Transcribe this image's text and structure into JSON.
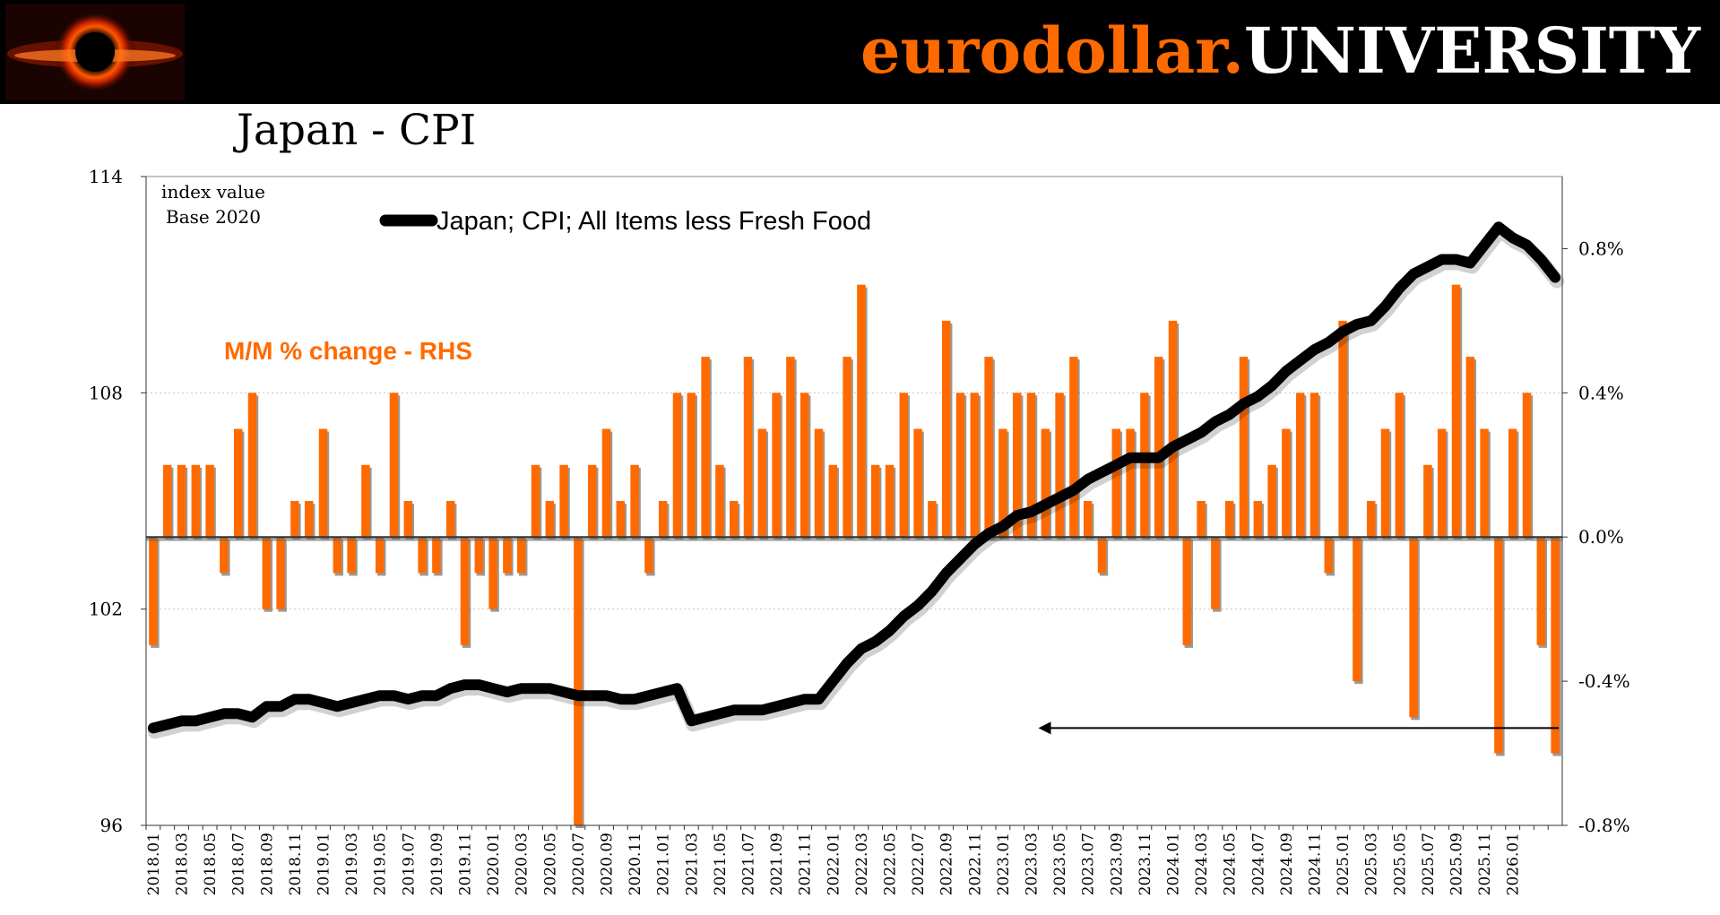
{
  "header": {
    "brand_left": "eurodollar.",
    "brand_right": "UNIVERSITY",
    "logo_icon": "black-hole-icon"
  },
  "colors": {
    "line": "#000000",
    "bars": "#ff6a00",
    "brand_accent": "#ff6a00",
    "header_bg": "#000000"
  },
  "chart_data": {
    "type": "bar+line",
    "title": "Japan - CPI",
    "left_axis": {
      "label_line1": "index value",
      "label_line2": "Base 2020",
      "range": [
        96,
        114
      ],
      "ticks": [
        96,
        102,
        108,
        114
      ],
      "tick_labels": [
        "96",
        "102",
        "108",
        "114"
      ]
    },
    "right_axis": {
      "range": [
        -0.8,
        1.0
      ],
      "ticks": [
        -0.8,
        -0.4,
        0.0,
        0.4,
        0.8
      ],
      "tick_labels": [
        "-0.8%",
        "-0.4%",
        "0.0%",
        "0.4%",
        "0.8%"
      ]
    },
    "line_series": {
      "name": "Japan; CPI; All Items less Fresh Food",
      "axis": "left",
      "values": [
        98.7,
        98.8,
        98.9,
        98.9,
        99.0,
        99.1,
        99.1,
        99.0,
        99.3,
        99.3,
        99.5,
        99.5,
        99.4,
        99.3,
        99.4,
        99.5,
        99.6,
        99.6,
        99.5,
        99.6,
        99.6,
        99.8,
        99.9,
        99.9,
        99.8,
        99.7,
        99.8,
        99.8,
        99.8,
        99.7,
        99.6,
        99.6,
        99.6,
        99.5,
        99.5,
        99.6,
        99.7,
        99.8,
        98.9,
        99.0,
        99.1,
        99.2,
        99.2,
        99.2,
        99.3,
        99.4,
        99.5,
        99.5,
        100.0,
        100.5,
        100.9,
        101.1,
        101.4,
        101.8,
        102.1,
        102.5,
        103.0,
        103.4,
        103.8,
        104.1,
        104.3,
        104.6,
        104.7,
        104.9,
        105.1,
        105.3,
        105.6,
        105.8,
        106.0,
        106.2,
        106.2,
        106.2,
        106.5,
        106.7,
        106.9,
        107.2,
        107.4,
        107.7,
        107.9,
        108.2,
        108.6,
        108.9,
        109.2,
        109.4,
        109.7,
        109.9,
        110.0,
        110.4,
        110.9,
        111.3,
        111.5,
        111.7,
        111.7,
        111.6,
        112.1,
        112.6,
        112.3,
        112.1,
        111.7,
        111.2
      ]
    },
    "bar_series": {
      "name": "M/M % change - RHS",
      "axis": "right",
      "values": [
        -0.3,
        0.2,
        0.2,
        0.2,
        0.2,
        -0.1,
        0.3,
        0.4,
        -0.2,
        -0.2,
        0.1,
        0.1,
        0.3,
        -0.1,
        -0.1,
        0.2,
        -0.1,
        0.4,
        0.1,
        -0.1,
        -0.1,
        0.1,
        -0.3,
        -0.1,
        -0.2,
        -0.1,
        -0.1,
        0.2,
        0.1,
        0.2,
        -1.0,
        0.2,
        0.3,
        0.1,
        0.2,
        -0.1,
        0.1,
        0.4,
        0.4,
        0.5,
        0.2,
        0.1,
        0.5,
        0.3,
        0.4,
        0.5,
        0.4,
        0.3,
        0.2,
        0.5,
        0.7,
        0.2,
        0.2,
        0.4,
        0.3,
        0.1,
        0.6,
        0.4,
        0.4,
        0.5,
        0.3,
        0.4,
        0.4,
        0.3,
        0.4,
        0.5,
        0.1,
        -0.1,
        0.3,
        0.3,
        0.4,
        0.5,
        0.6,
        -0.3,
        0.1,
        -0.2,
        0.1,
        0.5,
        0.1,
        0.2,
        0.3,
        0.4,
        0.4,
        -0.1,
        0.6,
        -0.4,
        0.1,
        0.3,
        0.4,
        -0.5,
        0.2,
        0.3,
        0.7,
        0.5,
        0.3,
        -0.6,
        0.3,
        0.4,
        -0.3,
        -0.6
      ]
    },
    "x_categories": [
      "2018.01",
      "2018.03",
      "2018.05",
      "2018.07",
      "2018.09",
      "2018.11",
      "2019.01",
      "2019.03",
      "2019.05",
      "2019.07",
      "2019.09",
      "2019.11",
      "2020.01",
      "2020.03",
      "2020.05",
      "2020.07",
      "2020.09",
      "2020.11",
      "2021.01",
      "2021.03",
      "2021.05",
      "2021.07",
      "2021.09",
      "2021.11",
      "2022.01",
      "2022.03",
      "2022.05",
      "2022.07",
      "2022.09",
      "2022.11",
      "2023.01",
      "2023.03",
      "2023.05",
      "2023.07",
      "2023.09",
      "2023.11",
      "2024.01",
      "2024.03",
      "2024.05",
      "2024.07",
      "2024.09",
      "2024.11",
      "2025.01",
      "2025.03",
      "2025.05",
      "2025.07",
      "2025.09",
      "2025.11",
      "2026.01"
    ],
    "legend": {
      "position": "top",
      "line_label": "Japan; CPI; All Items less Fresh Food",
      "bar_label": "M/M % change - RHS"
    },
    "annotation": {
      "type": "arrow",
      "direction": "left",
      "from_month_index": 99,
      "to_month_index": 62,
      "at_value": -0.53
    }
  }
}
